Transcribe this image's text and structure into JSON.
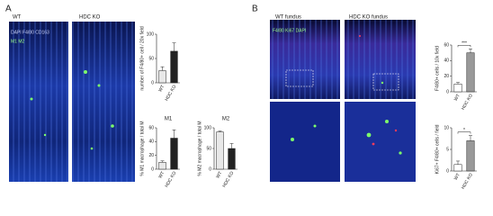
{
  "figure": {
    "panel_a": "A",
    "panel_b": "B",
    "a_wt": "WT",
    "a_ko": "HDC KO",
    "a_stain_1": "DAPI F4/80 CD163",
    "a_stain_2": "M1 M2",
    "b_wt": "WT fundus",
    "b_ko": "HDC KO fundus",
    "b_stain": "F4/80 Ki67 DAPI"
  },
  "chart_data": [
    {
      "type": "bar",
      "y_label": "number of F4/80+ cell / 20x field",
      "categories": [
        "WT",
        "HDC KO"
      ],
      "values": [
        25,
        65
      ],
      "errors": [
        8,
        17
      ],
      "colors": [
        "#e8e8e8",
        "#222222"
      ],
      "ylim": [
        0,
        100
      ],
      "yticks": [
        0,
        50,
        100
      ]
    },
    {
      "type": "bar",
      "title": "M1",
      "y_label": "% M1 macrophage / total M",
      "categories": [
        "WT",
        "HDC KO"
      ],
      "values": [
        10,
        45
      ],
      "errors": [
        2,
        12
      ],
      "colors": [
        "#e8e8e8",
        "#222222"
      ],
      "ylim": [
        0,
        60
      ],
      "yticks": [
        0,
        20,
        40,
        60
      ]
    },
    {
      "type": "bar",
      "title": "M2",
      "y_label": "% M2 macrophage / total M",
      "categories": [
        "WT",
        "HDC KO"
      ],
      "values": [
        90,
        50
      ],
      "errors": [
        2,
        12
      ],
      "colors": [
        "#e8e8e8",
        "#222222"
      ],
      "ylim": [
        0,
        100
      ],
      "yticks": [
        0,
        50,
        100
      ]
    },
    {
      "type": "bar",
      "y_label": "F4/80+ cells / 10x field",
      "categories": [
        "WT",
        "HDC KO"
      ],
      "values": [
        10,
        50
      ],
      "errors": [
        2,
        5
      ],
      "colors": [
        "#ffffff",
        "#999999"
      ],
      "ylim": [
        0,
        60
      ],
      "yticks": [
        0,
        20,
        40,
        60
      ],
      "annotation": "***"
    },
    {
      "type": "bar",
      "y_label": "Ki67+ F4/80+ cells / field",
      "categories": [
        "WT",
        "HDC KO"
      ],
      "values": [
        1.5,
        7
      ],
      "errors": [
        0.8,
        1.2
      ],
      "colors": [
        "#ffffff",
        "#999999"
      ],
      "ylim": [
        0,
        10
      ],
      "yticks": [
        0,
        5,
        10
      ],
      "annotation": "*"
    }
  ]
}
